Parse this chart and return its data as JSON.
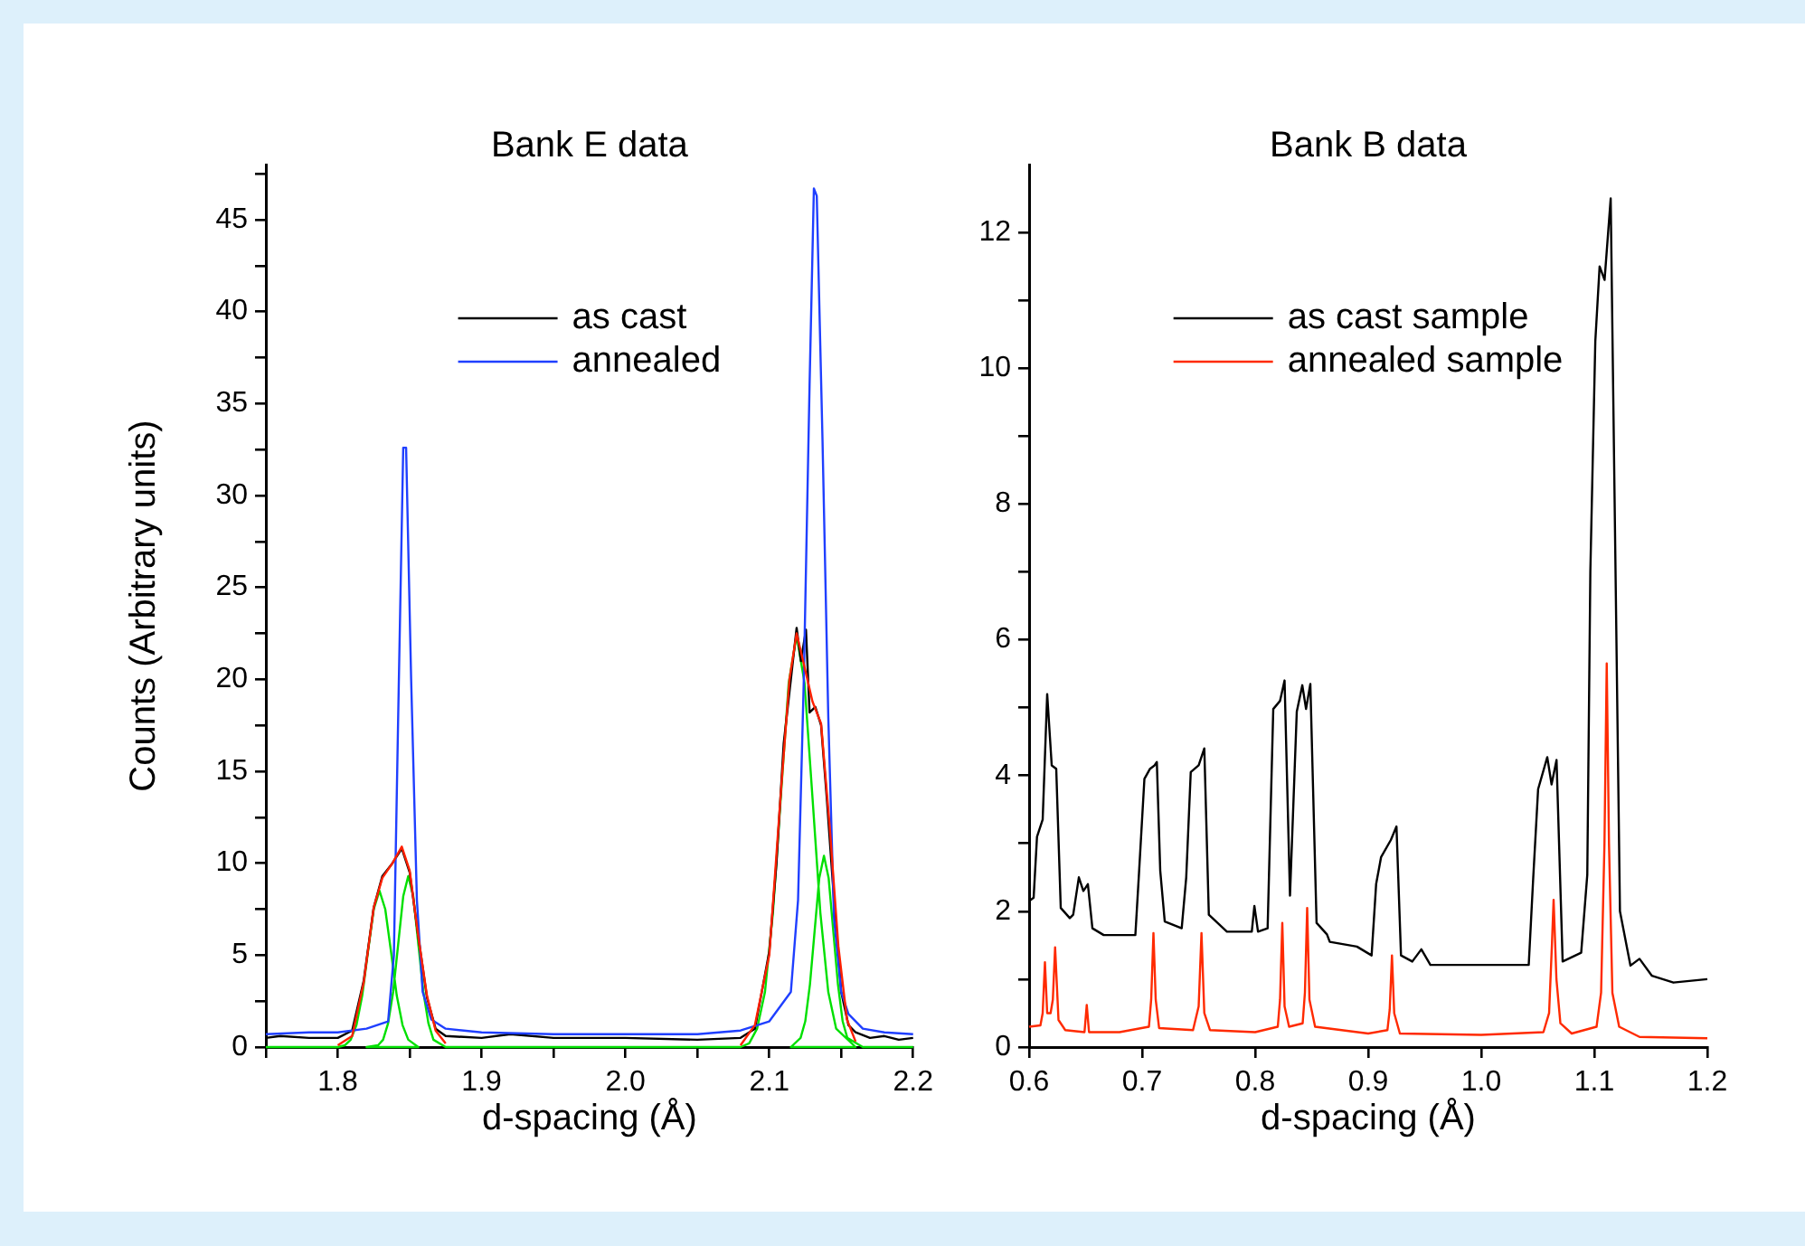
{
  "chart_data": [
    {
      "type": "line",
      "title": "Bank E data",
      "xlabel": "d-spacing (Å)",
      "ylabel": "Counts (Arbitrary units)",
      "legend": "top",
      "xlim": [
        1.75,
        2.2
      ],
      "xticks": [
        {
          "value": 1.75,
          "label": null
        },
        1.8,
        {
          "value": 1.85,
          "label": null
        },
        1.9,
        {
          "value": 1.95,
          "label": null
        },
        {
          "value": 2,
          "label": "2.0"
        },
        {
          "value": 2.05,
          "label": null
        },
        2.1,
        {
          "value": 2.15,
          "label": null
        },
        2.2
      ],
      "ylim": [
        0,
        48
      ],
      "yticks": [
        0,
        {
          "value": 2.5,
          "label": null
        },
        5,
        {
          "value": 7.5,
          "label": null
        },
        10,
        {
          "value": 12.5,
          "label": null
        },
        15,
        {
          "value": 17.5,
          "label": null
        },
        20,
        {
          "value": 22.5,
          "label": null
        },
        25,
        {
          "value": 27.5,
          "label": null
        },
        30,
        {
          "value": 32.5,
          "label": null
        },
        35,
        {
          "value": 37.5,
          "label": null
        },
        40,
        {
          "value": 42.5,
          "label": null
        },
        45,
        {
          "value": 47.5,
          "label": null
        }
      ],
      "series": [
        {
          "color": "#00e000",
          "x": [
            1.75,
            1.8,
            1.805,
            1.809,
            1.813,
            1.817,
            1.821,
            1.825,
            1.829,
            1.833,
            1.837,
            1.841,
            1.845,
            1.849,
            1.856,
            1.82,
            1.828,
            1.8315,
            1.835,
            1.8385,
            1.842,
            1.8455,
            1.849,
            1.8525,
            1.856,
            1.8595,
            1.863,
            1.8665,
            1.875,
            2.08,
            2.086,
            2.0915,
            2.097,
            2.1025,
            2.108,
            2.1135,
            2.119,
            2.1245,
            2.13,
            2.1355,
            2.141,
            2.1465,
            2.16,
            2.115,
            2.12175,
            2.125,
            2.12825,
            2.1315,
            2.13475,
            2.138,
            2.14125,
            2.1445,
            2.14775,
            2.151,
            2.15425,
            2.165,
            2.2
          ],
          "values": [
            0,
            0,
            0.1,
            0.4,
            1.2,
            2.8,
            5.2,
            7.5,
            8.5,
            7.5,
            5.2,
            2.8,
            1.2,
            0.4,
            0,
            0,
            0.1,
            0.4,
            1.3,
            3.0,
            5.6,
            8.2,
            9.3,
            8.2,
            5.6,
            3.0,
            1.3,
            0.4,
            0,
            0,
            0.2,
            1.0,
            3.0,
            7.3,
            13.6,
            19.8,
            22.4,
            19.8,
            13.6,
            7.3,
            3.0,
            1.0,
            0,
            0,
            0.5,
            1.4,
            3.4,
            6.3,
            9.2,
            10.4,
            9.2,
            6.3,
            3.4,
            1.4,
            0.5,
            0,
            0
          ]
        },
        {
          "name": "as cast",
          "color": "#000000",
          "x": [
            1.75,
            1.76,
            1.78,
            1.8,
            1.81,
            1.818,
            1.825,
            1.831,
            1.838,
            1.8445,
            1.85,
            1.856,
            1.862,
            1.868,
            1.875,
            1.9,
            1.92,
            1.95,
            2.0,
            2.05,
            2.08,
            2.09,
            2.1,
            2.105,
            2.11,
            2.115,
            2.119,
            2.122,
            2.1255,
            2.128,
            2.132,
            2.136,
            2.14,
            2.145,
            2.15,
            2.155,
            2.16,
            2.17,
            2.18,
            2.19,
            2.2
          ],
          "values": [
            0.5,
            0.6,
            0.5,
            0.5,
            0.9,
            3.6,
            7.6,
            9.3,
            10.0,
            10.8,
            9.5,
            6.0,
            2.7,
            1.0,
            0.6,
            0.5,
            0.7,
            0.5,
            0.5,
            0.4,
            0.5,
            1.0,
            5.2,
            10.0,
            16.5,
            20.0,
            22.8,
            21.0,
            22.7,
            18.2,
            18.5,
            17.5,
            13.5,
            8.0,
            3.0,
            1.2,
            0.8,
            0.5,
            0.6,
            0.4,
            0.5
          ]
        },
        {
          "name": "annealed",
          "color": "#1f3fff",
          "x": [
            1.75,
            1.78,
            1.8,
            1.82,
            1.835,
            1.839,
            1.842,
            1.8455,
            1.8475,
            1.851,
            1.855,
            1.859,
            1.865,
            1.875,
            1.9,
            1.95,
            2.0,
            2.05,
            2.08,
            2.1,
            2.115,
            2.12,
            2.124,
            2.128,
            2.131,
            2.133,
            2.137,
            2.141,
            2.145,
            2.15,
            2.155,
            2.165,
            2.18,
            2.2
          ],
          "values": [
            0.7,
            0.8,
            0.8,
            1.0,
            1.4,
            5,
            18,
            32.6,
            32.6,
            20,
            8,
            3,
            1.5,
            1.0,
            0.8,
            0.7,
            0.7,
            0.7,
            0.9,
            1.4,
            3,
            8,
            20,
            36,
            46.7,
            46.3,
            33,
            18,
            7,
            3,
            1.8,
            1.0,
            0.8,
            0.7
          ]
        },
        {
          "color": "#ff2000",
          "x": [
            1.8,
            1.81,
            1.818,
            1.825,
            1.831,
            1.838,
            1.8445,
            1.85,
            1.856,
            1.862,
            1.868,
            1.875,
            1.95,
            2.08,
            2.09,
            2.1,
            2.108,
            2.114,
            2.119,
            2.125,
            2.13,
            2.136,
            2.142,
            2.148,
            2.154,
            2.16
          ],
          "values": [
            0.1,
            0.6,
            3.5,
            7.6,
            9.2,
            10.0,
            10.9,
            9.6,
            6.0,
            2.8,
            0.9,
            0.2,
            null,
            0.1,
            1.2,
            5.0,
            13.8,
            20.0,
            22.5,
            20.5,
            18.8,
            17.6,
            12.0,
            5.5,
            1.5,
            0.3
          ]
        }
      ]
    },
    {
      "type": "line",
      "title": "Bank B data",
      "xlabel": "d-spacing (Å)",
      "legend": "top",
      "xlim": [
        0.6,
        1.2
      ],
      "xticks": [
        0.6,
        0.7,
        0.8,
        0.9,
        {
          "value": 1,
          "label": "1.0"
        },
        1.1,
        1.2
      ],
      "ylim": [
        0,
        13
      ],
      "yticks": [
        0,
        {
          "value": 1,
          "label": null
        },
        2,
        {
          "value": 3,
          "label": null
        },
        4,
        {
          "value": 5,
          "label": null
        },
        6,
        {
          "value": 7,
          "label": null
        },
        8,
        {
          "value": 9,
          "label": null
        },
        10,
        {
          "value": 11,
          "label": null
        },
        12
      ],
      "series": [
        {
          "name": "as cast sample",
          "color": "#000000",
          "x": [
            0.6,
            0.604,
            0.607,
            0.612,
            0.616,
            0.62,
            0.624,
            0.628,
            0.636,
            0.639,
            0.644,
            0.648,
            0.652,
            0.656,
            0.666,
            0.694,
            0.697,
            0.702,
            0.707,
            0.711,
            0.713,
            0.716,
            0.72,
            0.735,
            0.739,
            0.743,
            0.75,
            0.755,
            0.759,
            0.775,
            0.797,
            0.7993,
            0.8025,
            0.811,
            0.816,
            0.822,
            0.826,
            0.8308,
            0.8368,
            0.8417,
            0.845,
            0.8488,
            0.8543,
            0.8635,
            0.866,
            0.89,
            0.903,
            0.907,
            0.9114,
            0.92,
            0.925,
            0.929,
            0.939,
            0.947,
            0.955,
            1.042,
            1.046,
            1.0503,
            1.0584,
            1.0622,
            1.0666,
            1.072,
            1.0884,
            1.0938,
            1.0965,
            1.1009,
            1.1047,
            1.1091,
            1.1145,
            1.1227,
            1.132,
            1.14,
            1.151,
            1.17,
            1.2
          ],
          "values": [
            2.15,
            2.2,
            3.1,
            3.35,
            5.2,
            4.15,
            4.1,
            2.05,
            1.9,
            1.95,
            2.5,
            2.3,
            2.4,
            1.75,
            1.65,
            1.65,
            2.5,
            3.95,
            4.1,
            4.15,
            4.2,
            2.6,
            1.85,
            1.75,
            2.5,
            4.05,
            4.15,
            4.4,
            1.95,
            1.7,
            1.7,
            2.08,
            1.7,
            1.75,
            4.98,
            5.1,
            5.4,
            2.23,
            4.94,
            5.33,
            4.98,
            5.35,
            1.83,
            1.66,
            1.55,
            1.48,
            1.35,
            2.4,
            2.8,
            3.05,
            3.25,
            1.35,
            1.26,
            1.44,
            1.21,
            1.21,
            2.5,
            3.8,
            4.27,
            3.87,
            4.23,
            1.26,
            1.39,
            2.54,
            7.0,
            10.4,
            11.5,
            11.3,
            12.5,
            2.0,
            1.2,
            1.3,
            1.05,
            0.95,
            1.0
          ]
        },
        {
          "name": "annealed sample",
          "color": "#ff2a00",
          "x": [
            0.6,
            0.61,
            0.612,
            0.614,
            0.616,
            0.619,
            0.621,
            0.623,
            0.626,
            0.632,
            0.649,
            0.651,
            0.653,
            0.68,
            0.706,
            0.708,
            0.71,
            0.712,
            0.715,
            0.745,
            0.75,
            0.7525,
            0.755,
            0.76,
            0.8,
            0.82,
            0.822,
            0.824,
            0.826,
            0.83,
            0.842,
            0.844,
            0.846,
            0.848,
            0.853,
            0.9,
            0.917,
            0.919,
            0.921,
            0.923,
            0.928,
            1.0,
            1.055,
            1.06,
            1.0625,
            1.064,
            1.0665,
            1.07,
            1.08,
            1.102,
            1.106,
            1.109,
            1.111,
            1.113,
            1.116,
            1.122,
            1.14,
            1.2
          ],
          "values": [
            0.3,
            0.32,
            0.5,
            1.25,
            0.5,
            0.5,
            0.7,
            1.47,
            0.4,
            0.25,
            0.22,
            0.62,
            0.22,
            0.22,
            0.3,
            0.7,
            1.68,
            0.7,
            0.28,
            0.25,
            0.6,
            1.68,
            0.5,
            0.25,
            0.22,
            0.3,
            0.7,
            1.83,
            0.6,
            0.3,
            0.35,
            0.8,
            2.05,
            0.7,
            0.3,
            0.2,
            0.25,
            0.55,
            1.35,
            0.5,
            0.2,
            0.18,
            0.22,
            0.5,
            1.5,
            2.17,
            1.0,
            0.35,
            0.2,
            0.3,
            0.8,
            3.0,
            5.65,
            3.0,
            0.8,
            0.3,
            0.15,
            0.13
          ]
        }
      ]
    }
  ]
}
